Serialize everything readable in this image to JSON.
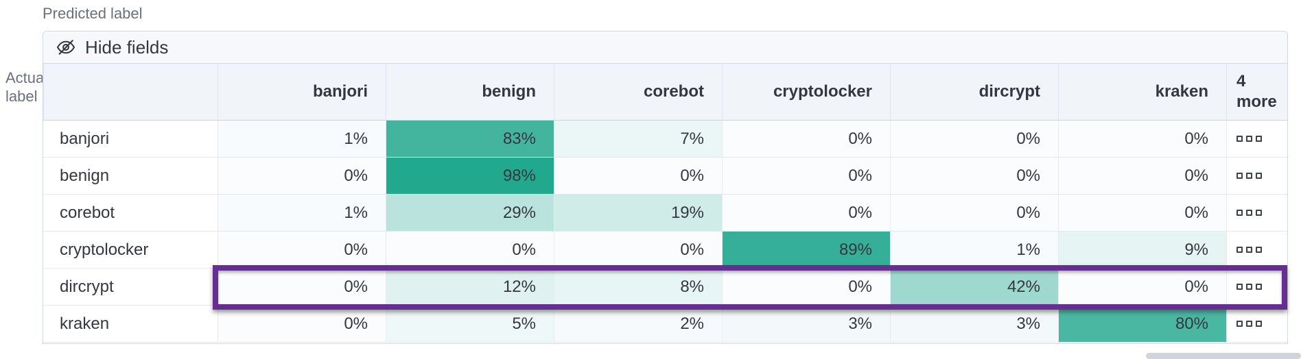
{
  "axis": {
    "predicted_label": "Predicted label",
    "actual_label": "Actual label"
  },
  "toolbar": {
    "hide_fields_label": "Hide fields",
    "icon": "eye-closed-icon"
  },
  "overflow": {
    "header_label": "4 more",
    "cell_icon": "boxes-horizontal-icon"
  },
  "chart_data": {
    "type": "heatmap",
    "subtype": "confusion-matrix",
    "title": "",
    "xlabel": "Predicted label",
    "ylabel": "Actual label",
    "value_suffix": "%",
    "value_range": [
      0,
      100
    ],
    "columns": [
      "banjori",
      "benign",
      "corebot",
      "cryptolocker",
      "dircrypt",
      "kraken"
    ],
    "overflow_column_label": "4 more",
    "rows": [
      {
        "label": "banjori",
        "values": [
          1,
          83,
          7,
          0,
          0,
          0
        ],
        "highlighted": false
      },
      {
        "label": "benign",
        "values": [
          0,
          98,
          0,
          0,
          0,
          0
        ],
        "highlighted": false
      },
      {
        "label": "corebot",
        "values": [
          1,
          29,
          19,
          0,
          0,
          0
        ],
        "highlighted": false
      },
      {
        "label": "cryptolocker",
        "values": [
          0,
          0,
          0,
          89,
          1,
          9
        ],
        "highlighted": false
      },
      {
        "label": "dircrypt",
        "values": [
          0,
          12,
          8,
          0,
          42,
          0
        ],
        "highlighted": true
      },
      {
        "label": "kraken",
        "values": [
          0,
          5,
          2,
          3,
          3,
          80
        ],
        "highlighted": false
      }
    ],
    "colors": {
      "scale_min": "#fafcfe",
      "scale_max": "#1ea68b",
      "highlight_border": "#662e91",
      "header_bg": "#f1f4f9",
      "toolbar_bg": "#f7f8fc",
      "grid_border": "#d3dae6",
      "text": "#343741"
    }
  }
}
